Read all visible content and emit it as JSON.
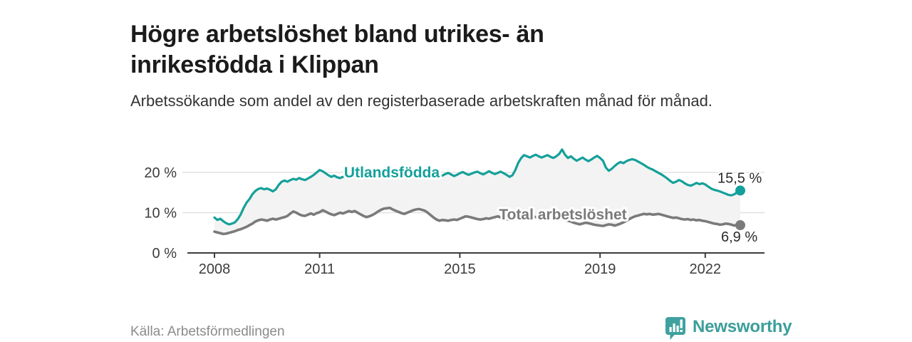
{
  "header": {
    "title": "Högre arbetslöshet bland utrikes- än inrikesfödda i Klippan",
    "subtitle": "Arbetssökande som andel av den registerbaserade arbetskraften månad för månad."
  },
  "footer": {
    "source": "Källa: Arbetsförmedlingen",
    "brand": "Newsworthy"
  },
  "colors": {
    "teal": "#14a09a",
    "gray": "#7a7a7a",
    "brand_teal": "#3fa19e",
    "area_fill": "#f3f3f3",
    "grid": "#dcdcdc",
    "axis": "#3d3d3d",
    "tick_text": "#3c3c3c"
  },
  "chart_data": {
    "type": "line",
    "title": "",
    "xlabel": "",
    "ylabel": "",
    "x_unit": "month",
    "x_start": "2008-01",
    "x_end": "2023-01",
    "x_tick_years": [
      2008,
      2011,
      2015,
      2019,
      2022
    ],
    "y_ticks": [
      0,
      10,
      20
    ],
    "y_tick_labels": [
      "0 %",
      "10 %",
      "20 %"
    ],
    "ylim": [
      0,
      27
    ],
    "grid": "horizontal",
    "legend_position": "inline-labels",
    "area_between_series": true,
    "series": [
      {
        "name": "Utlandsfödda",
        "end_label": "15,5 %",
        "end_value": 15.5,
        "values": [
          8.8,
          8.2,
          8.5,
          7.9,
          7.4,
          7.1,
          7.3,
          7.6,
          8.4,
          9.6,
          11.2,
          12.5,
          13.4,
          14.6,
          15.4,
          15.9,
          16.1,
          15.8,
          16.0,
          15.7,
          15.3,
          15.8,
          16.9,
          17.7,
          18.0,
          17.7,
          18.1,
          18.4,
          18.2,
          18.6,
          18.3,
          18.1,
          18.5,
          18.9,
          19.4,
          20.0,
          20.6,
          20.3,
          19.8,
          19.3,
          18.9,
          19.2,
          18.8,
          18.6,
          18.9,
          19.3,
          19.0,
          18.7,
          19.0,
          19.4,
          19.1,
          18.7,
          18.5,
          18.8,
          19.2,
          19.5,
          19.2,
          18.9,
          19.2,
          19.5,
          19.8,
          19.4,
          19.1,
          18.8,
          19.1,
          19.5,
          19.2,
          18.9,
          19.2,
          19.6,
          19.3,
          19.0,
          18.7,
          19.0,
          19.4,
          19.7,
          19.3,
          18.9,
          19.2,
          19.6,
          19.9,
          19.5,
          19.1,
          19.4,
          19.8,
          20.1,
          19.7,
          19.4,
          19.7,
          20.0,
          20.2,
          19.8,
          19.5,
          19.9,
          20.3,
          19.9,
          19.6,
          19.9,
          20.2,
          19.8,
          19.4,
          18.9,
          19.3,
          20.6,
          22.4,
          23.6,
          24.3,
          24.0,
          23.7,
          24.1,
          24.4,
          24.0,
          23.7,
          24.0,
          24.3,
          23.9,
          23.6,
          24.0,
          24.6,
          25.7,
          24.4,
          23.6,
          24.0,
          23.4,
          22.9,
          23.3,
          23.7,
          23.2,
          22.8,
          23.2,
          23.7,
          24.1,
          23.6,
          22.9,
          21.2,
          20.4,
          20.9,
          21.6,
          22.2,
          22.6,
          22.3,
          22.8,
          23.1,
          23.3,
          23.1,
          22.7,
          22.3,
          21.9,
          21.4,
          21.0,
          20.7,
          20.3,
          19.9,
          19.5,
          19.0,
          18.5,
          17.9,
          17.4,
          17.7,
          18.1,
          17.8,
          17.3,
          16.9,
          16.7,
          17.0,
          17.4,
          17.1,
          17.3,
          17.0,
          16.5,
          16.0,
          15.7,
          15.5,
          15.3,
          15.0,
          14.7,
          14.4,
          14.3,
          14.6,
          15.1,
          15.5
        ]
      },
      {
        "name": "Total arbetslöshet",
        "end_label": "6,9 %",
        "end_value": 6.9,
        "values": [
          5.3,
          5.1,
          4.9,
          4.7,
          4.8,
          5.0,
          5.2,
          5.4,
          5.7,
          5.9,
          6.2,
          6.5,
          6.9,
          7.3,
          7.8,
          8.1,
          8.3,
          8.2,
          8.0,
          8.3,
          8.5,
          8.3,
          8.5,
          8.7,
          8.9,
          9.2,
          9.8,
          10.3,
          10.0,
          9.6,
          9.3,
          9.2,
          9.5,
          9.8,
          9.5,
          9.9,
          10.1,
          10.6,
          10.3,
          9.9,
          9.6,
          9.4,
          9.7,
          10.0,
          9.8,
          10.1,
          10.4,
          10.2,
          10.4,
          10.0,
          9.6,
          9.2,
          8.9,
          9.1,
          9.4,
          9.8,
          10.3,
          10.7,
          11.0,
          11.1,
          11.2,
          10.8,
          10.5,
          10.2,
          9.9,
          9.7,
          10.0,
          10.3,
          10.6,
          10.8,
          10.9,
          10.7,
          10.5,
          10.0,
          9.4,
          8.8,
          8.3,
          8.0,
          8.2,
          8.1,
          8.0,
          8.2,
          8.3,
          8.2,
          8.5,
          8.8,
          9.1,
          9.0,
          8.8,
          8.6,
          8.4,
          8.3,
          8.4,
          8.6,
          8.5,
          8.7,
          8.9,
          9.1,
          8.8,
          8.6,
          8.4,
          8.2,
          8.4,
          8.7,
          8.9,
          9.1,
          9.0,
          9.2,
          9.3,
          9.1,
          8.9,
          8.7,
          8.5,
          8.3,
          8.5,
          8.8,
          9.0,
          8.8,
          8.6,
          8.4,
          8.2,
          8.0,
          7.8,
          7.5,
          7.3,
          7.1,
          7.3,
          7.5,
          7.4,
          7.2,
          7.0,
          6.9,
          6.8,
          6.7,
          6.9,
          7.1,
          7.0,
          6.8,
          7.0,
          7.3,
          7.6,
          8.0,
          8.4,
          8.8,
          9.1,
          9.3,
          9.5,
          9.7,
          9.6,
          9.7,
          9.5,
          9.6,
          9.7,
          9.5,
          9.3,
          9.1,
          8.9,
          8.7,
          8.8,
          8.6,
          8.4,
          8.3,
          8.4,
          8.2,
          8.3,
          8.1,
          8.2,
          8.0,
          7.9,
          7.7,
          7.5,
          7.3,
          7.2,
          7.0,
          7.1,
          7.3,
          7.2,
          7.0,
          6.8,
          7.0,
          6.9
        ]
      }
    ]
  }
}
